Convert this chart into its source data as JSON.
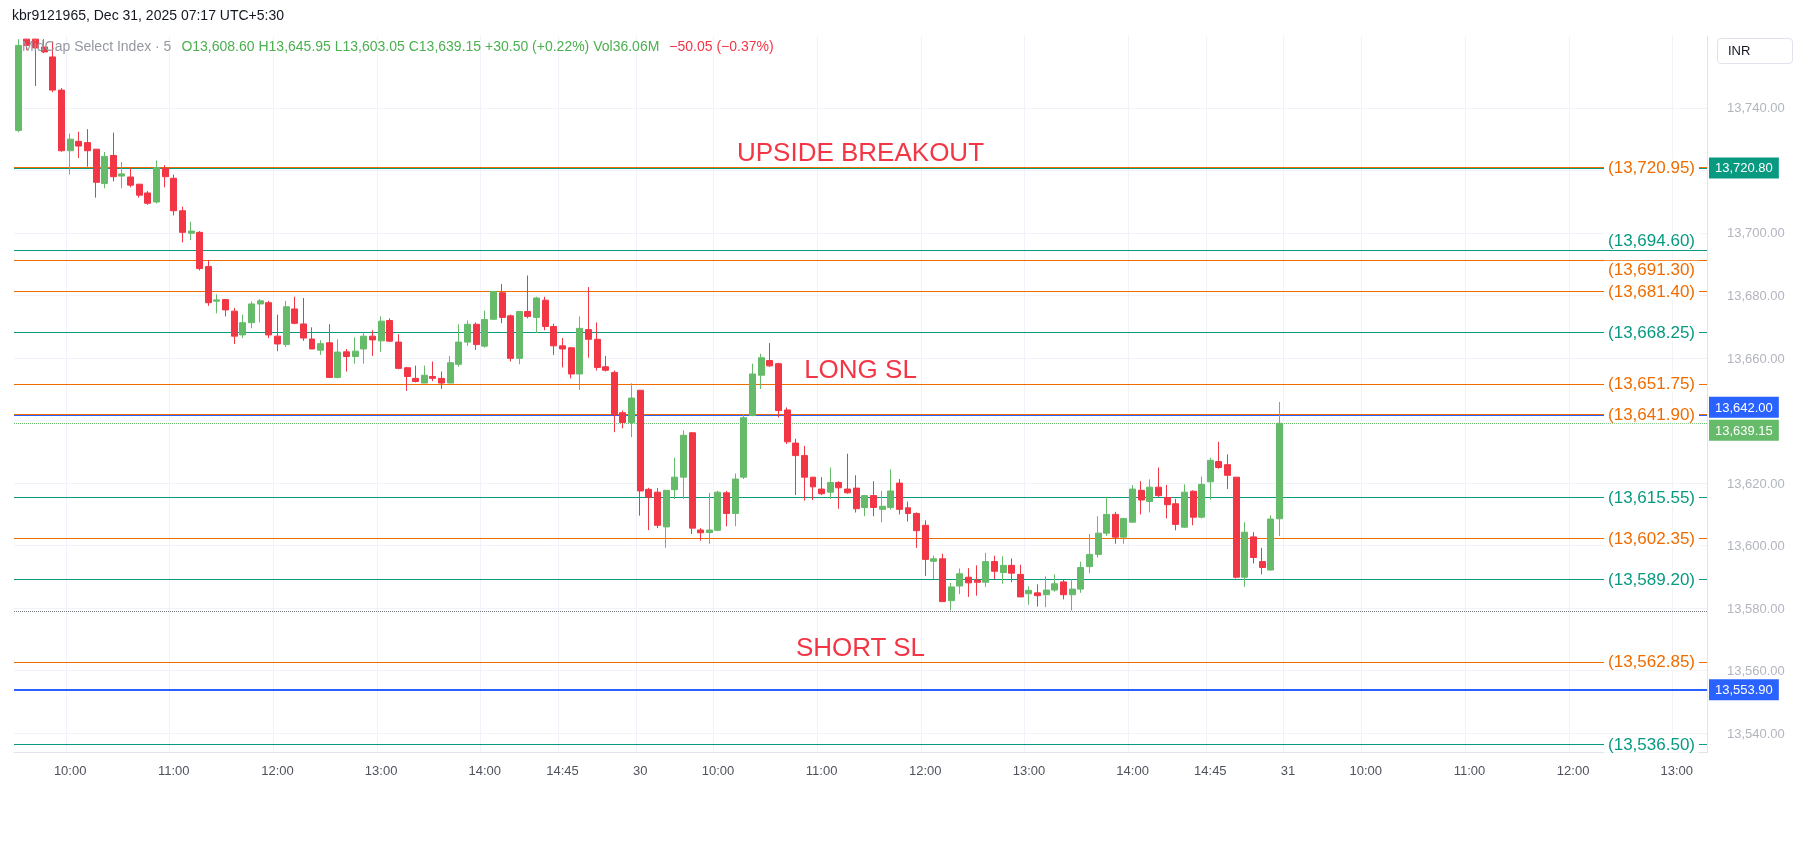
{
  "chart_data": {
    "type": "candlestick",
    "title": "MidCap Select Index · 5",
    "subtitle": "O13,608.60 H13,645.95 L13,603.05 C13,639.15 +30.50 (+0.22%) Vol36.06M",
    "annotations": [
      "kbr9121965, Dec 31, 2025 07:17 UTC+5:30",
      "−50.05 (−0.37%)",
      "INR",
      {
        "text": "UPSIDE BREAKOUT",
        "y": 13720.95
      },
      {
        "text": "LONG SL",
        "y": 13651.75
      },
      {
        "text": "SHORT SL",
        "y": 13562.85
      }
    ],
    "categories": [
      null,
      null,
      null,
      null,
      null,
      null,
      "10:00",
      null,
      null,
      null,
      null,
      null,
      null,
      null,
      null,
      null,
      null,
      null,
      "11:00",
      null,
      null,
      null,
      null,
      null,
      null,
      null,
      null,
      null,
      null,
      null,
      "12:00",
      null,
      null,
      null,
      null,
      null,
      null,
      null,
      null,
      null,
      null,
      null,
      "13:00",
      null,
      null,
      null,
      null,
      null,
      null,
      null,
      null,
      null,
      null,
      null,
      "14:00",
      null,
      null,
      null,
      null,
      null,
      null,
      null,
      null,
      "14:45",
      null,
      null,
      null,
      null,
      null,
      null,
      null,
      null,
      "30",
      null,
      null,
      null,
      null,
      null,
      null,
      null,
      null,
      "10:00",
      null,
      null,
      null,
      null,
      null,
      null,
      null,
      null,
      null,
      null,
      null,
      "11:00",
      null,
      null,
      null,
      null,
      null,
      null,
      null,
      null,
      null,
      null,
      null,
      "12:00",
      null,
      null,
      null,
      null,
      null,
      null,
      null,
      null,
      null,
      null,
      null,
      "13:00",
      null,
      null,
      null,
      null,
      null,
      null,
      null,
      null,
      null,
      null,
      null,
      "14:00",
      null,
      null,
      null,
      null,
      null,
      null,
      null,
      null,
      "14:45",
      null,
      null,
      null,
      null,
      null,
      null,
      null,
      null,
      "31",
      null,
      null,
      null,
      null,
      null,
      null,
      null,
      null,
      "10:00",
      null,
      null,
      null,
      null,
      null,
      null,
      null,
      null,
      null,
      null,
      null,
      "11:00",
      null,
      null,
      null,
      null,
      null,
      null,
      null,
      null,
      null,
      null,
      null,
      "12:00",
      null,
      null,
      null,
      null,
      null,
      null,
      null,
      null,
      null,
      null,
      null,
      "13:00",
      null,
      null,
      null
    ],
    "ohlc": [
      [
        13732.8,
        13762,
        13732.2,
        13760
      ],
      [
        13762,
        13762,
        13758.5,
        13760
      ],
      [
        13762,
        13762,
        13747,
        13759.2
      ],
      [
        13759.5,
        13762,
        13757.5,
        13757.9
      ],
      [
        13756.3,
        13761.3,
        13745,
        13745.7
      ],
      [
        13745.7,
        13746.4,
        13726,
        13726.3
      ],
      [
        13726.3,
        13731.8,
        13718.7,
        13730
      ],
      [
        13729.3,
        13732.4,
        13724,
        13727.8
      ],
      [
        13728.9,
        13733.2,
        13721.2,
        13726.3
      ],
      [
        13726.8,
        13726.8,
        13711.3,
        13716.2
      ],
      [
        13715.8,
        13725.9,
        13714.3,
        13724.5
      ],
      [
        13724.8,
        13732.1,
        13716.5,
        13718
      ],
      [
        13718.2,
        13722.7,
        13714.3,
        13718.9
      ],
      [
        13717.9,
        13720.9,
        13714.6,
        13715.3
      ],
      [
        13715.6,
        13715.6,
        13711.3,
        13712.1
      ],
      [
        13712.8,
        13713.4,
        13709,
        13709.5
      ],
      [
        13709.9,
        13723.2,
        13709.4,
        13720.9
      ],
      [
        13720.7,
        13721.7,
        13714.6,
        13718
      ],
      [
        13717.5,
        13718.7,
        13705.6,
        13707.1
      ],
      [
        13707.1,
        13708.4,
        13697,
        13700.2
      ],
      [
        13699.9,
        13703.6,
        13697.7,
        13700.6
      ],
      [
        13700.2,
        13700.6,
        13688,
        13688.6
      ],
      [
        13689.3,
        13691.4,
        13676.7,
        13677.7
      ],
      [
        13678.2,
        13680.4,
        13674.3,
        13678.6
      ],
      [
        13678.7,
        13678.9,
        13673.3,
        13675.4
      ],
      [
        13675,
        13676,
        13664.5,
        13667
      ],
      [
        13667.4,
        13673.9,
        13666.4,
        13671.3
      ],
      [
        13671.3,
        13678.1,
        13669.5,
        13677.3
      ],
      [
        13677.3,
        13678.9,
        13671.4,
        13678.3
      ],
      [
        13677.7,
        13678.3,
        13666.4,
        13667.4
      ],
      [
        13667,
        13673.9,
        13662.2,
        13664.5
      ],
      [
        13664.3,
        13678.3,
        13663.5,
        13676.4
      ],
      [
        13675.7,
        13679.6,
        13670.8,
        13671.1
      ],
      [
        13670.9,
        13679.2,
        13665.5,
        13666.4
      ],
      [
        13666.1,
        13669.8,
        13662.9,
        13662.9
      ],
      [
        13662.5,
        13665.7,
        13661,
        13664.6
      ],
      [
        13664.9,
        13670.8,
        13653.6,
        13653.8
      ],
      [
        13653.8,
        13666,
        13653.5,
        13661.9
      ],
      [
        13662,
        13662.9,
        13655.7,
        13660.5
      ],
      [
        13660.5,
        13666.6,
        13658.2,
        13662.2
      ],
      [
        13662.9,
        13668.3,
        13658.2,
        13667
      ],
      [
        13667,
        13668.9,
        13660.7,
        13665.8
      ],
      [
        13665.5,
        13673.3,
        13662,
        13671.8
      ],
      [
        13672,
        13672.7,
        13665.1,
        13665.4
      ],
      [
        13665.1,
        13667.6,
        13656.4,
        13656.7
      ],
      [
        13656.9,
        13657.2,
        13649.5,
        13654.1
      ],
      [
        13653.5,
        13657.6,
        13652.2,
        13652.5
      ],
      [
        13652,
        13657.6,
        13652,
        13654.5
      ],
      [
        13654.1,
        13658.9,
        13652.6,
        13653.5
      ],
      [
        13653.5,
        13655.7,
        13650.1,
        13652
      ],
      [
        13652,
        13660.7,
        13652,
        13658.5
      ],
      [
        13658,
        13670.8,
        13657.2,
        13665.1
      ],
      [
        13665.1,
        13672,
        13663.9,
        13670.8
      ],
      [
        13670.8,
        13671.4,
        13662.6,
        13664.3
      ],
      [
        13663.8,
        13675.2,
        13663.3,
        13672.3
      ],
      [
        13672.4,
        13681.3,
        13672.4,
        13681.3
      ],
      [
        13680.9,
        13683.7,
        13671.1,
        13673
      ],
      [
        13673.5,
        13673.9,
        13658.9,
        13659.9
      ],
      [
        13659.9,
        13674.9,
        13658,
        13674.9
      ],
      [
        13674.9,
        13686.4,
        13672.7,
        13673.3
      ],
      [
        13673,
        13679.6,
        13668,
        13679.2
      ],
      [
        13678.5,
        13679.6,
        13668.9,
        13670.1
      ],
      [
        13670.1,
        13671,
        13661,
        13663.9
      ],
      [
        13663.9,
        13666.4,
        13657,
        13662.9
      ],
      [
        13663.3,
        13663.5,
        13653.5,
        13654.9
      ],
      [
        13654.9,
        13673.3,
        13649.8,
        13669.5
      ],
      [
        13669.1,
        13682.7,
        13660.1,
        13666
      ],
      [
        13666,
        13671.4,
        13656,
        13657
      ],
      [
        13657.2,
        13660.7,
        13655.7,
        13656.1
      ],
      [
        13655.4,
        13656,
        13636.3,
        13641.9
      ],
      [
        13642.5,
        13643.2,
        13637.5,
        13639.4
      ],
      [
        13639.4,
        13651.9,
        13634.7,
        13647.2
      ],
      [
        13649.7,
        13649.7,
        13609.6,
        13617.5
      ],
      [
        13618,
        13618.5,
        13605,
        13615.5
      ],
      [
        13617.1,
        13618.4,
        13605.6,
        13606.5
      ],
      [
        13606,
        13617.7,
        13599.3,
        13617.7
      ],
      [
        13617.9,
        13628.1,
        13614.9,
        13621.9
      ],
      [
        13621.9,
        13636.9,
        13615,
        13635.3
      ],
      [
        13636.1,
        13636.3,
        13603.7,
        13605.6
      ],
      [
        13605,
        13605.6,
        13601.6,
        13604.1
      ],
      [
        13604.2,
        13616.9,
        13600.6,
        13605
      ],
      [
        13604.9,
        13617.5,
        13604.6,
        13617.1
      ],
      [
        13616.9,
        13617.5,
        13606.2,
        13610.3
      ],
      [
        13610.3,
        13623.1,
        13606.2,
        13621.3
      ],
      [
        13621.9,
        13641.9,
        13621.3,
        13640.9
      ],
      [
        13641.6,
        13658.2,
        13641.4,
        13654.9
      ],
      [
        13654.5,
        13661.4,
        13650.1,
        13660.1
      ],
      [
        13659.2,
        13664.8,
        13657.2,
        13657.5
      ],
      [
        13658.2,
        13658.5,
        13641,
        13643.2
      ],
      [
        13643.4,
        13644.2,
        13632.5,
        13633.2
      ],
      [
        13632.8,
        13634.2,
        13616.2,
        13628.8
      ],
      [
        13628.8,
        13631.9,
        13614.4,
        13621.9
      ],
      [
        13621.9,
        13621.9,
        13614.6,
        13618.8
      ],
      [
        13618.1,
        13621.9,
        13616.2,
        13616.6
      ],
      [
        13617.1,
        13625,
        13615,
        13620.2
      ],
      [
        13620.2,
        13620.6,
        13611.8,
        13618.5
      ],
      [
        13618.1,
        13629.4,
        13616.6,
        13616.9
      ],
      [
        13618.4,
        13622.5,
        13610.6,
        13611.8
      ],
      [
        13612.2,
        13616.2,
        13609.4,
        13616
      ],
      [
        13616,
        13620.6,
        13609.4,
        13612.2
      ],
      [
        13611.6,
        13617.5,
        13607.5,
        13612.6
      ],
      [
        13612.2,
        13624.4,
        13611.5,
        13617.5
      ],
      [
        13620,
        13621.3,
        13610,
        13611.6
      ],
      [
        13612.1,
        13614.1,
        13607.7,
        13610.3
      ],
      [
        13610.3,
        13610.6,
        13599.3,
        13604.8
      ],
      [
        13606.5,
        13608.1,
        13590.3,
        13595.6
      ],
      [
        13595,
        13596.8,
        13589.3,
        13595.8
      ],
      [
        13595.8,
        13597.4,
        13582.1,
        13582.1
      ],
      [
        13582.4,
        13588.1,
        13579.3,
        13586.8
      ],
      [
        13587.1,
        13592.7,
        13584.5,
        13591
      ],
      [
        13589.9,
        13592.8,
        13583.6,
        13588.1
      ],
      [
        13588.9,
        13593.7,
        13584,
        13588.3
      ],
      [
        13588.3,
        13597.7,
        13586.8,
        13594.9
      ],
      [
        13594.9,
        13596.8,
        13589.3,
        13591.8
      ],
      [
        13591.4,
        13596.6,
        13587.8,
        13593.7
      ],
      [
        13593.7,
        13595.9,
        13588.3,
        13591.2
      ],
      [
        13590.8,
        13593.9,
        13583.6,
        13583.6
      ],
      [
        13584.6,
        13587,
        13581.1,
        13585.7
      ],
      [
        13584.9,
        13587.6,
        13580.5,
        13584
      ],
      [
        13584.3,
        13590.2,
        13580.3,
        13585.8
      ],
      [
        13585.8,
        13590.8,
        13585.3,
        13587.8
      ],
      [
        13588.4,
        13589.3,
        13582.8,
        13584.3
      ],
      [
        13584.3,
        13589.3,
        13579.3,
        13586.1
      ],
      [
        13586.1,
        13594.9,
        13584.9,
        13593
      ],
      [
        13593.3,
        13603.7,
        13591.2,
        13597.2
      ],
      [
        13597.2,
        13609.4,
        13596.2,
        13604
      ],
      [
        13604,
        13615.6,
        13603.1,
        13610
      ],
      [
        13610,
        13610.8,
        13600.6,
        13602.7
      ],
      [
        13602.7,
        13608.7,
        13600.6,
        13608.7
      ],
      [
        13607.5,
        13619.4,
        13607.5,
        13618.1
      ],
      [
        13617.7,
        13620.6,
        13610,
        13614.6
      ],
      [
        13614.1,
        13621.2,
        13610.6,
        13618.7
      ],
      [
        13618.7,
        13625,
        13615.6,
        13616
      ],
      [
        13615.4,
        13619.4,
        13608.7,
        13613.1
      ],
      [
        13613.4,
        13615,
        13604.9,
        13606.8
      ],
      [
        13605.9,
        13619.6,
        13605.6,
        13617.1
      ],
      [
        13617.4,
        13617.7,
        13606.5,
        13609.1
      ],
      [
        13609.1,
        13622.1,
        13608.7,
        13619.6
      ],
      [
        13620.4,
        13628.1,
        13614.7,
        13627.3
      ],
      [
        13626.9,
        13633.2,
        13624.6,
        13625
      ],
      [
        13625.9,
        13629.2,
        13618.1,
        13622.5
      ],
      [
        13621.9,
        13621.9,
        13589.5,
        13589.9
      ],
      [
        13589.9,
        13607.5,
        13586.8,
        13604.3
      ],
      [
        13602.8,
        13604.3,
        13594.3,
        13596.2
      ],
      [
        13594.9,
        13599.3,
        13590.8,
        13593
      ],
      [
        13592.2,
        13609.7,
        13592.1,
        13608.5
      ],
      [
        13608.6,
        13645.95,
        13603.05,
        13639.15
      ],
      null,
      null,
      null,
      null,
      null,
      null,
      null,
      null,
      null,
      null,
      null,
      null,
      null,
      null,
      null,
      null,
      null,
      null,
      null,
      null,
      null,
      null,
      null,
      null,
      null,
      null,
      null,
      null,
      null,
      null,
      null,
      null,
      null,
      null,
      null,
      null,
      null,
      null,
      null,
      null,
      null,
      null,
      null,
      null,
      null,
      null,
      null,
      null,
      null
    ],
    "colors": [
      "#66bb6a",
      "#f23645",
      "#f23645",
      "#f23645",
      "#f23645",
      "#f23645",
      "#66bb6a",
      "#f23645",
      "#f23645",
      "#f23645",
      "#66bb6a",
      "#f23645",
      "#66bb6a",
      "#f23645",
      "#f23645",
      "#f23645",
      "#66bb6a",
      "#f23645",
      "#f23645",
      "#f23645",
      "#66bb6a",
      "#f23645",
      "#f23645",
      "#66bb6a",
      "#f23645",
      "#f23645",
      "#66bb6a",
      "#66bb6a",
      "#66bb6a",
      "#f23645",
      "#f23645",
      "#66bb6a",
      "#f23645",
      "#f23645",
      "#f23645",
      "#66bb6a",
      "#f23645",
      "#66bb6a",
      "#f23645",
      "#66bb6a",
      "#66bb6a",
      "#f23645",
      "#66bb6a",
      "#f23645",
      "#f23645",
      "#f23645",
      "#f23645",
      "#66bb6a",
      "#f23645",
      "#f23645",
      "#66bb6a",
      "#66bb6a",
      "#66bb6a",
      "#f23645",
      "#66bb6a",
      "#66bb6a",
      "#f23645",
      "#f23645",
      "#66bb6a",
      "#f23645",
      "#66bb6a",
      "#f23645",
      "#f23645",
      "#f23645",
      "#f23645",
      "#66bb6a",
      "#f23645",
      "#f23645",
      "#f23645",
      "#f23645",
      "#f23645",
      "#66bb6a",
      "#f23645",
      "#f23645",
      "#f23645",
      "#66bb6a",
      "#66bb6a",
      "#66bb6a",
      "#f23645",
      "#f23645",
      "#66bb6a",
      "#66bb6a",
      "#f23645",
      "#66bb6a",
      "#66bb6a",
      "#66bb6a",
      "#66bb6a",
      "#f23645",
      "#f23645",
      "#f23645",
      "#f23645",
      "#f23645",
      "#f23645",
      "#f23645",
      "#66bb6a",
      "#f23645",
      "#f23645",
      "#f23645",
      "#66bb6a",
      "#f23645",
      "#66bb6a",
      "#66bb6a",
      "#f23645",
      "#f23645",
      "#f23645",
      "#f23645",
      "#66bb6a",
      "#f23645",
      "#66bb6a",
      "#66bb6a",
      "#f23645",
      "#f23645",
      "#66bb6a",
      "#f23645",
      "#66bb6a",
      "#f23645",
      "#f23645",
      "#66bb6a",
      "#f23645",
      "#66bb6a",
      "#66bb6a",
      "#f23645",
      "#66bb6a",
      "#66bb6a",
      "#66bb6a",
      "#66bb6a",
      "#66bb6a",
      "#f23645",
      "#66bb6a",
      "#66bb6a",
      "#f23645",
      "#66bb6a",
      "#f23645",
      "#f23645",
      "#f23645",
      "#66bb6a",
      "#f23645",
      "#66bb6a",
      "#66bb6a",
      "#f23645",
      "#f23645",
      "#f23645",
      "#66bb6a",
      "#f23645",
      "#f23645",
      "#66bb6a",
      "#66bb6a",
      null,
      null,
      null,
      null,
      null,
      null,
      null,
      null,
      null,
      null,
      null,
      null,
      null,
      null,
      null,
      null,
      null,
      null,
      null,
      null,
      null,
      null,
      null,
      null,
      null,
      null,
      null,
      null,
      null,
      null,
      null,
      null,
      null,
      null,
      null,
      null,
      null,
      null,
      null,
      null,
      null,
      null,
      null,
      null,
      null,
      null,
      null,
      null,
      null
    ],
    "ylim": [
      13534,
      13763
    ],
    "yticks": [
      {
        "value": 13540,
        "label": "13,540.00"
      },
      {
        "value": 13560,
        "label": "13,560.00"
      },
      {
        "value": 13580,
        "label": "13,580.00"
      },
      {
        "value": 13600,
        "label": "13,600.00"
      },
      {
        "value": 13620,
        "label": "13,620.00"
      },
      {
        "value": 13640,
        "label": null
      },
      {
        "value": 13660,
        "label": "13,660.00"
      },
      {
        "value": 13680,
        "label": "13,680.00"
      },
      {
        "value": 13700,
        "label": "13,700.00"
      },
      {
        "value": 13720,
        "label": null
      },
      {
        "value": 13740,
        "label": "13,740.00"
      }
    ],
    "grid": true,
    "ref_lines": [
      {
        "axis": "y",
        "value": 13720.95,
        "label": "(13,720.95)",
        "color": "#ef6c00"
      },
      {
        "axis": "y",
        "value": 13720.8,
        "label": "13,720.80",
        "color": "#089981",
        "line_style": "solid"
      },
      {
        "axis": "y",
        "value": 13694.6,
        "label": "(13,694.60)",
        "color": "#089981"
      },
      {
        "axis": "y",
        "value": 13691.3,
        "label": "(13,691.30)",
        "color": "#ef6c00"
      },
      {
        "axis": "y",
        "value": 13681.4,
        "label": "(13,681.40)",
        "color": "#ef6c00"
      },
      {
        "axis": "y",
        "value": 13668.25,
        "label": "(13,668.25)",
        "color": "#089981"
      },
      {
        "axis": "y",
        "value": 13651.75,
        "label": "(13,651.75)",
        "color": "#ef6c00"
      },
      {
        "axis": "y",
        "value": 13641.9,
        "label": "(13,641.90)",
        "color": "#ef6c00"
      },
      {
        "axis": "y",
        "value": 13642,
        "label": "13,642.00",
        "color": "#2962ff",
        "line_style": "solid"
      },
      {
        "axis": "y",
        "value": 13639.15,
        "label": "13,639.15",
        "color": "#66bb6a",
        "line_style": "dotted"
      },
      {
        "axis": "y",
        "value": 13615.55,
        "label": "(13,615.55)",
        "color": "#089981"
      },
      {
        "axis": "y",
        "value": 13602.35,
        "label": "(13,602.35)",
        "color": "#ef6c00"
      },
      {
        "axis": "y",
        "value": 13589.2,
        "label": "(13,589.20)",
        "color": "#089981"
      },
      {
        "axis": "y",
        "value": 13579,
        "color": "#787b86",
        "line_style": "dotted"
      },
      {
        "axis": "y",
        "value": 13562.85,
        "label": "(13,562.85)",
        "color": "#ef6c00"
      },
      {
        "axis": "y",
        "value": 13553.9,
        "label": "13,553.90",
        "color": "#2962ff",
        "line_style": "solid"
      },
      {
        "axis": "y",
        "value": 13536.5,
        "label": "(13,536.50)",
        "color": "#089981"
      }
    ]
  }
}
